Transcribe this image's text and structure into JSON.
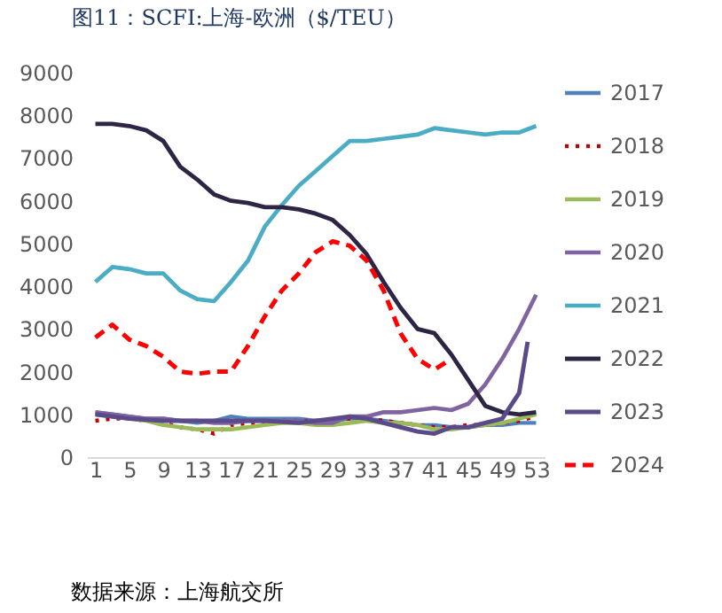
{
  "chart_data": {
    "type": "line",
    "title": "图11：SCFI:上海-欧洲（$/TEU）",
    "annotations": [
      "数据来源：上海航交所"
    ],
    "x": [
      1,
      3,
      5,
      7,
      9,
      11,
      13,
      15,
      17,
      19,
      21,
      23,
      25,
      27,
      29,
      31,
      33,
      35,
      37,
      39,
      41,
      43,
      45,
      47,
      49,
      51,
      53
    ],
    "xlim": [
      0,
      54
    ],
    "xticks": [
      1,
      5,
      9,
      13,
      17,
      21,
      25,
      29,
      33,
      37,
      41,
      45,
      49,
      53
    ],
    "ylim": [
      0,
      9000
    ],
    "yticks": [
      0,
      1000,
      2000,
      3000,
      4000,
      5000,
      6000,
      7000,
      8000,
      9000
    ],
    "grid": false,
    "legend": "right",
    "marker": "none",
    "series": [
      {
        "name": "2017",
        "color": "#4f81bd",
        "line_style": "solid",
        "values": [
          1050,
          1000,
          950,
          900,
          900,
          850,
          800,
          850,
          950,
          900,
          900,
          900,
          900,
          850,
          850,
          900,
          900,
          850,
          800,
          750,
          750,
          700,
          700,
          750,
          750,
          800,
          800
        ]
      },
      {
        "name": "2018",
        "color": "#c00000",
        "line_style": "dotted",
        "values": [
          850,
          900,
          900,
          850,
          800,
          700,
          650,
          550,
          750,
          800,
          800,
          850,
          850,
          850,
          850,
          900,
          900,
          850,
          800,
          750,
          700,
          700,
          750,
          750,
          800,
          850,
          950
        ]
      },
      {
        "name": "2019",
        "color": "#9bbb59",
        "line_style": "solid",
        "values": [
          1000,
          950,
          900,
          850,
          750,
          700,
          650,
          650,
          650,
          700,
          750,
          800,
          800,
          750,
          750,
          800,
          850,
          800,
          800,
          750,
          650,
          650,
          700,
          750,
          800,
          900,
          1000
        ]
      },
      {
        "name": "2020",
        "color": "#8064a2",
        "line_style": "solid",
        "values": [
          1050,
          1000,
          950,
          900,
          900,
          850,
          850,
          800,
          800,
          850,
          850,
          850,
          850,
          800,
          800,
          950,
          950,
          1050,
          1050,
          1100,
          1150,
          1100,
          1250,
          1700,
          2300,
          3000,
          3800
        ]
      },
      {
        "name": "2021",
        "color": "#4bacc6",
        "line_style": "solid",
        "values": [
          4100,
          4450,
          4400,
          4300,
          4300,
          3900,
          3700,
          3650,
          4100,
          4600,
          5400,
          5900,
          6350,
          6700,
          7050,
          7400,
          7400,
          7450,
          7500,
          7550,
          7700,
          7650,
          7600,
          7550,
          7600,
          7600,
          7750
        ]
      },
      {
        "name": "2022",
        "color": "#2e2444",
        "line_style": "solid",
        "values": [
          7800,
          7800,
          7750,
          7650,
          7400,
          6800,
          6500,
          6150,
          6000,
          5950,
          5850,
          5850,
          5800,
          5700,
          5550,
          5200,
          4750,
          4100,
          3500,
          3000,
          2900,
          2400,
          1800,
          1200,
          1050,
          1000,
          1050
        ]
      },
      {
        "name": "2023",
        "color": "#5b4a8a",
        "line_style": "solid",
        "x": [
          1,
          5,
          9,
          13,
          17,
          21,
          25,
          29,
          31,
          33,
          35,
          37,
          39,
          41,
          43,
          45,
          47,
          49,
          51,
          52
        ],
        "values": [
          1000,
          900,
          850,
          850,
          850,
          850,
          800,
          900,
          950,
          900,
          800,
          700,
          600,
          550,
          700,
          700,
          800,
          900,
          1500,
          2700
        ]
      },
      {
        "name": "2024",
        "color": "#ff0000",
        "line_style": "dashed",
        "x": [
          1,
          3,
          5,
          7,
          9,
          11,
          13,
          15,
          17,
          19,
          21,
          23,
          25,
          27,
          29,
          31,
          33,
          35,
          37,
          39,
          41,
          43
        ],
        "values": [
          2800,
          3100,
          2750,
          2600,
          2350,
          2000,
          1950,
          2000,
          2000,
          2600,
          3300,
          3900,
          4300,
          4800,
          5050,
          4950,
          4600,
          3900,
          2900,
          2300,
          2050,
          2300
        ]
      }
    ]
  }
}
